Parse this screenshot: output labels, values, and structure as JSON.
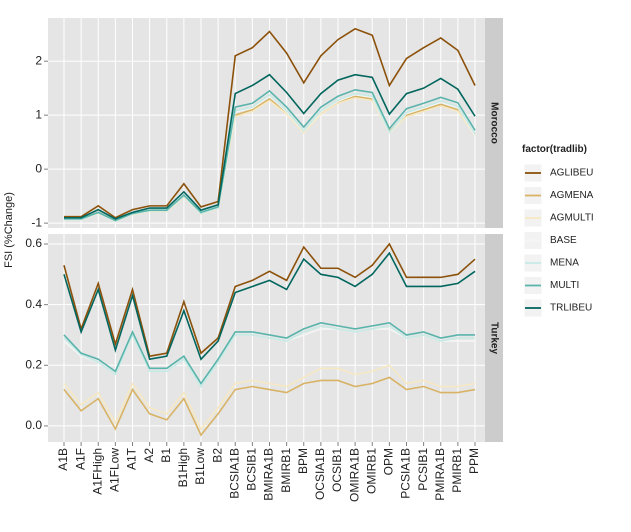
{
  "chart_data": [
    {
      "type": "line",
      "facet": "Morocco",
      "y_label": "FSI (%Change)",
      "legend_title": "factor(tradlib)",
      "categories": [
        "A1B",
        "A1F",
        "A1FHigh",
        "A1FLow",
        "A1T",
        "A2",
        "B1",
        "B1High",
        "B1Low",
        "B2",
        "BCSIA1B",
        "BCSIB1",
        "BMIRA1B",
        "BMIRB1",
        "BPM",
        "OCSIA1B",
        "OCSIB1",
        "OMIRA1B",
        "OMIRB1",
        "OPM",
        "PCSIA1B",
        "PCSIB1",
        "PMIRA1B",
        "PMIRB1",
        "PPM"
      ],
      "ylim": [
        -1.09,
        2.8
      ],
      "yticks": [
        -1,
        0,
        1,
        2
      ],
      "grid": true,
      "series": [
        {
          "name": "AGLIBEU",
          "color": "#8c510a",
          "values": [
            -0.88,
            -0.88,
            -0.68,
            -0.9,
            -0.75,
            -0.68,
            -0.68,
            -0.27,
            -0.7,
            -0.6,
            2.1,
            2.25,
            2.55,
            2.15,
            1.6,
            2.1,
            2.4,
            2.6,
            2.48,
            1.55,
            2.05,
            2.25,
            2.43,
            2.2,
            1.55
          ]
        },
        {
          "name": "AGMENA",
          "color": "#d8b365",
          "values": [
            -0.92,
            -0.92,
            -0.8,
            -0.95,
            -0.83,
            -0.77,
            -0.77,
            -0.5,
            -0.82,
            -0.72,
            1.0,
            1.1,
            1.3,
            1.05,
            0.7,
            1.05,
            1.25,
            1.35,
            1.3,
            0.7,
            1.0,
            1.1,
            1.2,
            1.1,
            0.65
          ]
        },
        {
          "name": "AGMULTI",
          "color": "#f6e8c3",
          "values": [
            -0.93,
            -0.93,
            -0.82,
            -0.96,
            -0.84,
            -0.78,
            -0.78,
            -0.52,
            -0.83,
            -0.73,
            0.97,
            1.07,
            1.27,
            1.02,
            0.67,
            1.02,
            1.22,
            1.32,
            1.27,
            0.67,
            0.97,
            1.07,
            1.17,
            1.07,
            0.62
          ]
        },
        {
          "name": "BASE",
          "color": "#f5f5f5",
          "values": [
            -0.93,
            -0.93,
            -0.81,
            -0.96,
            -0.83,
            -0.77,
            -0.77,
            -0.5,
            -0.82,
            -0.72,
            1.06,
            1.13,
            1.36,
            1.06,
            0.7,
            1.06,
            1.26,
            1.38,
            1.33,
            0.67,
            1.03,
            1.13,
            1.24,
            1.14,
            0.63
          ]
        },
        {
          "name": "MENA",
          "color": "#c7eae5",
          "values": [
            -0.93,
            -0.93,
            -0.81,
            -0.96,
            -0.83,
            -0.77,
            -0.77,
            -0.5,
            -0.82,
            -0.72,
            1.08,
            1.15,
            1.38,
            1.08,
            0.71,
            1.08,
            1.28,
            1.4,
            1.35,
            0.68,
            1.05,
            1.15,
            1.26,
            1.16,
            0.65
          ]
        },
        {
          "name": "MULTI",
          "color": "#5ab4ac",
          "values": [
            -0.92,
            -0.92,
            -0.8,
            -0.95,
            -0.82,
            -0.76,
            -0.76,
            -0.48,
            -0.8,
            -0.7,
            1.15,
            1.22,
            1.45,
            1.15,
            0.78,
            1.15,
            1.35,
            1.47,
            1.42,
            0.75,
            1.12,
            1.22,
            1.33,
            1.23,
            0.72
          ]
        },
        {
          "name": "TRLIBEU",
          "color": "#01665e",
          "values": [
            -0.9,
            -0.9,
            -0.75,
            -0.92,
            -0.8,
            -0.72,
            -0.72,
            -0.42,
            -0.76,
            -0.66,
            1.4,
            1.55,
            1.75,
            1.42,
            1.03,
            1.4,
            1.65,
            1.75,
            1.7,
            1.02,
            1.4,
            1.5,
            1.68,
            1.48,
            0.98
          ]
        }
      ]
    },
    {
      "type": "line",
      "facet": "Turkey",
      "ylim": [
        -0.053,
        0.633
      ],
      "yticks": [
        {
          "value": 0,
          "label": "0.0"
        },
        0.2,
        0.4,
        0.6
      ],
      "grid": true,
      "series": [
        {
          "name": "AGLIBEU",
          "color": "#8c510a",
          "values": [
            0.53,
            0.32,
            0.47,
            0.27,
            0.45,
            0.23,
            0.24,
            0.41,
            0.24,
            0.29,
            0.46,
            0.48,
            0.51,
            0.48,
            0.59,
            0.52,
            0.52,
            0.49,
            0.53,
            0.6,
            0.49,
            0.49,
            0.49,
            0.5,
            0.55
          ]
        },
        {
          "name": "AGMENA",
          "color": "#d8b365",
          "values": [
            0.12,
            0.05,
            0.09,
            -0.01,
            0.12,
            0.04,
            0.02,
            0.09,
            -0.03,
            0.04,
            0.12,
            0.13,
            0.12,
            0.11,
            0.14,
            0.15,
            0.15,
            0.13,
            0.14,
            0.16,
            0.12,
            0.13,
            0.11,
            0.11,
            0.12
          ]
        },
        {
          "name": "AGMULTI",
          "color": "#f6e8c3",
          "values": [
            0.14,
            0.07,
            0.11,
            0.01,
            0.14,
            0.06,
            0.04,
            0.11,
            -0.01,
            0.06,
            0.14,
            0.15,
            0.14,
            0.13,
            0.16,
            0.19,
            0.19,
            0.17,
            0.18,
            0.2,
            0.14,
            0.15,
            0.13,
            0.13,
            0.14
          ]
        },
        {
          "name": "BASE",
          "color": "#f5f5f5",
          "values": [
            0.28,
            0.23,
            0.21,
            0.17,
            0.3,
            0.18,
            0.18,
            0.22,
            0.13,
            0.21,
            0.3,
            0.3,
            0.29,
            0.28,
            0.3,
            0.32,
            0.32,
            0.31,
            0.32,
            0.32,
            0.29,
            0.3,
            0.28,
            0.28,
            0.28
          ]
        },
        {
          "name": "MENA",
          "color": "#c7eae5",
          "values": [
            0.29,
            0.235,
            0.21,
            0.17,
            0.3,
            0.18,
            0.18,
            0.22,
            0.13,
            0.21,
            0.3,
            0.3,
            0.29,
            0.28,
            0.31,
            0.33,
            0.32,
            0.31,
            0.32,
            0.33,
            0.29,
            0.3,
            0.28,
            0.29,
            0.29
          ]
        },
        {
          "name": "MULTI",
          "color": "#5ab4ac",
          "values": [
            0.3,
            0.24,
            0.22,
            0.18,
            0.31,
            0.19,
            0.19,
            0.23,
            0.14,
            0.22,
            0.31,
            0.31,
            0.3,
            0.29,
            0.32,
            0.34,
            0.33,
            0.32,
            0.33,
            0.34,
            0.3,
            0.31,
            0.29,
            0.3,
            0.3
          ]
        },
        {
          "name": "TRLIBEU",
          "color": "#01665e",
          "values": [
            0.5,
            0.31,
            0.45,
            0.25,
            0.43,
            0.22,
            0.23,
            0.38,
            0.22,
            0.28,
            0.44,
            0.46,
            0.48,
            0.45,
            0.55,
            0.5,
            0.49,
            0.46,
            0.5,
            0.57,
            0.46,
            0.46,
            0.46,
            0.47,
            0.51
          ]
        }
      ]
    }
  ]
}
